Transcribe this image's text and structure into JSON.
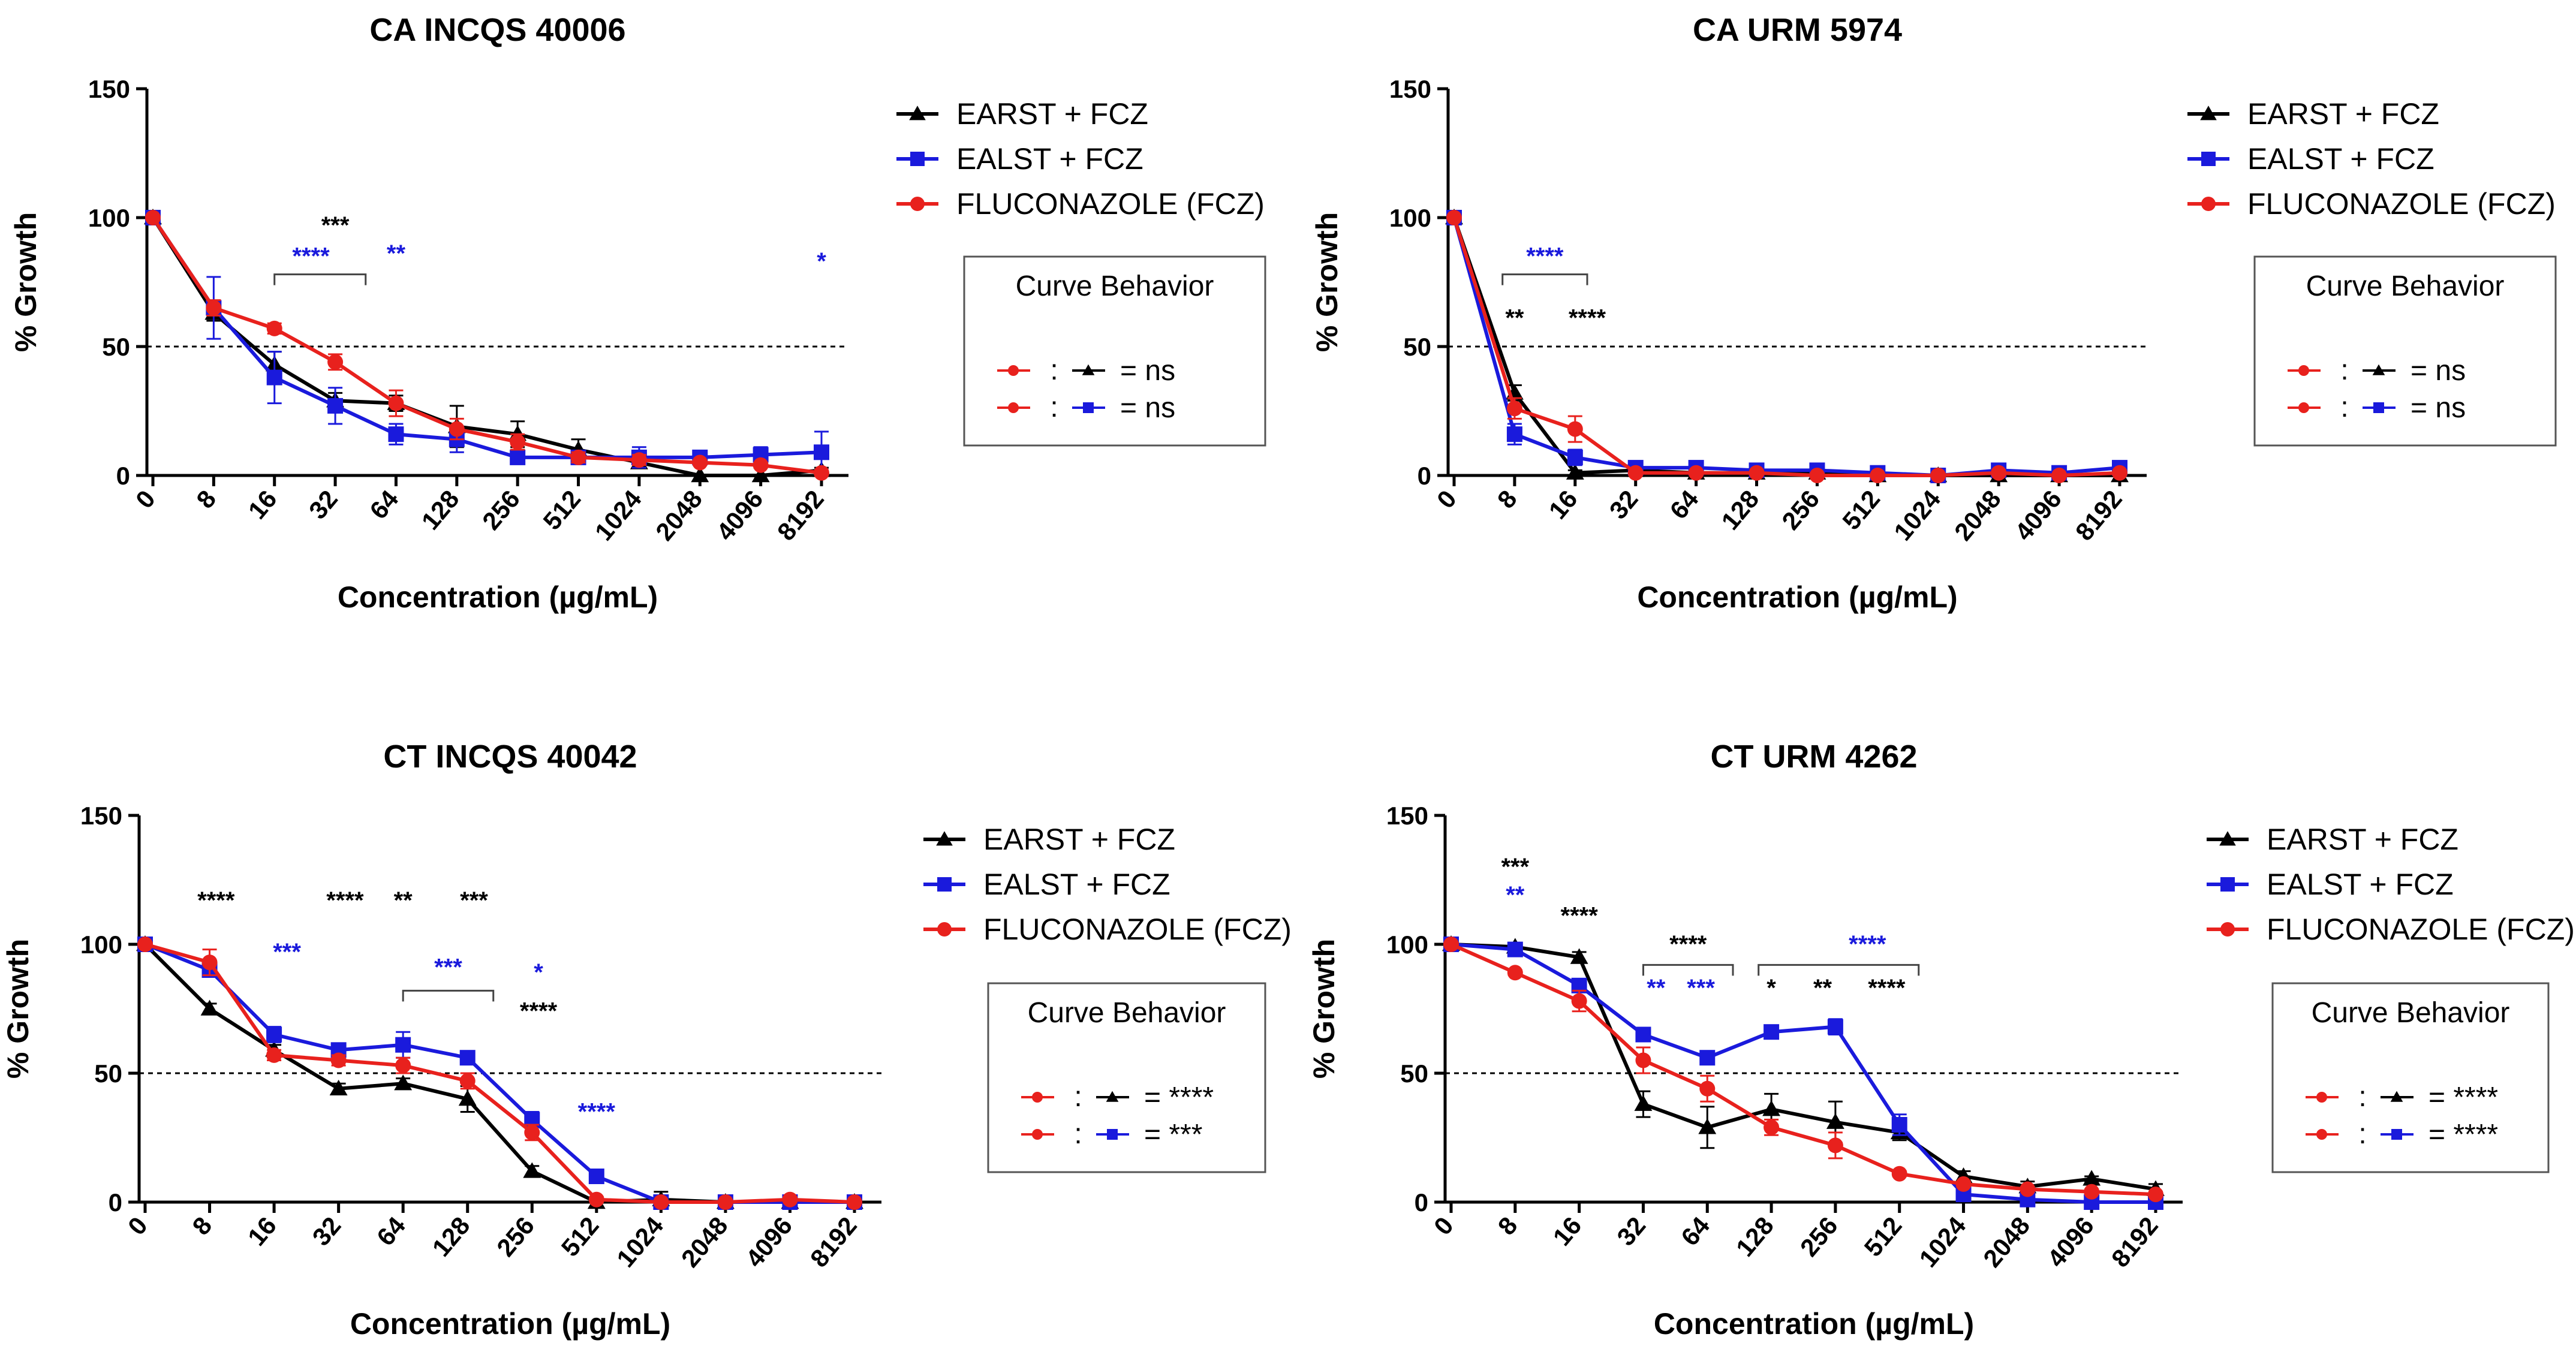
{
  "chart_data": [
    {
      "type": "line",
      "title": "CA INCQS 40006",
      "xlabel": "Concentration (µg/mL)",
      "ylabel": "% Growth",
      "categories": [
        "0",
        "8",
        "16",
        "32",
        "64",
        "128",
        "256",
        "512",
        "1024",
        "2048",
        "4096",
        "8192"
      ],
      "ylim": [
        0,
        150
      ],
      "yticks": [
        "0",
        "50",
        "100",
        "150"
      ],
      "reference_line": 50,
      "series": [
        {
          "name": "EARST + FCZ",
          "color": "#000000",
          "marker": "triangle",
          "values": [
            100,
            63,
            43,
            29,
            28,
            19,
            16,
            10,
            5,
            0,
            0,
            2
          ],
          "errors": [
            0,
            3,
            5,
            3,
            3,
            8,
            5,
            4,
            2,
            0,
            0,
            1
          ]
        },
        {
          "name": "EALST + FCZ",
          "color": "#1a1adc",
          "marker": "square",
          "values": [
            100,
            65,
            38,
            27,
            16,
            14,
            7,
            7,
            7,
            7,
            8,
            9
          ],
          "errors": [
            0,
            12,
            10,
            7,
            4,
            5,
            2,
            2,
            4,
            2,
            3,
            8
          ]
        },
        {
          "name": "FLUCONAZOLE (FCZ)",
          "color": "#e8211d",
          "marker": "circle",
          "values": [
            100,
            65,
            57,
            44,
            28,
            18,
            13,
            7,
            6,
            5,
            4,
            1
          ],
          "errors": [
            0,
            3,
            2,
            3,
            5,
            4,
            3,
            2,
            2,
            1,
            1,
            1
          ]
        }
      ],
      "annotations": [
        {
          "text": "***",
          "color": "#000000",
          "at_category": 3,
          "y": 94
        },
        {
          "text": "****",
          "color": "#1a1adc",
          "at_category": 2.6,
          "y": 82
        },
        {
          "text": "**",
          "color": "#1a1adc",
          "at_category": 4,
          "y": 83
        },
        {
          "text": "*",
          "color": "#1a1adc",
          "at_category": 11,
          "y": 80
        }
      ],
      "brackets": [
        {
          "from": 2,
          "to": 3.5,
          "y": 78
        }
      ],
      "curve_behavior": {
        "title": "Curve Behavior",
        "rows": [
          "= ns",
          "= ns"
        ]
      }
    },
    {
      "type": "line",
      "title": "CA URM 5974",
      "xlabel": "Concentration (µg/mL)",
      "ylabel": "% Growth",
      "categories": [
        "0",
        "8",
        "16",
        "32",
        "64",
        "128",
        "256",
        "512",
        "1024",
        "2048",
        "4096",
        "8192"
      ],
      "ylim": [
        0,
        150
      ],
      "yticks": [
        "0",
        "50",
        "100",
        "150"
      ],
      "reference_line": 50,
      "series": [
        {
          "name": "EARST + FCZ",
          "color": "#000000",
          "marker": "triangle",
          "values": [
            100,
            32,
            1,
            2,
            1,
            1,
            1,
            0,
            0,
            0,
            0,
            0
          ],
          "errors": [
            0,
            3,
            1,
            1,
            1,
            1,
            1,
            0,
            0,
            0,
            0,
            0
          ]
        },
        {
          "name": "EALST + FCZ",
          "color": "#1a1adc",
          "marker": "square",
          "values": [
            100,
            16,
            7,
            3,
            3,
            2,
            2,
            1,
            0,
            2,
            1,
            3
          ],
          "errors": [
            0,
            4,
            3,
            1,
            1,
            1,
            1,
            1,
            0,
            1,
            1,
            1
          ]
        },
        {
          "name": "FLUCONAZOLE (FCZ)",
          "color": "#e8211d",
          "marker": "circle",
          "values": [
            100,
            26,
            18,
            1,
            1,
            1,
            0,
            0,
            0,
            1,
            0,
            1
          ],
          "errors": [
            0,
            4,
            5,
            1,
            1,
            1,
            0,
            0,
            0,
            1,
            0,
            1
          ]
        }
      ],
      "annotations": [
        {
          "text": "****",
          "color": "#1a1adc",
          "at_category": 1.5,
          "y": 82
        },
        {
          "text": "**",
          "color": "#000000",
          "at_category": 1,
          "y": 58
        },
        {
          "text": "****",
          "color": "#000000",
          "at_category": 2.2,
          "y": 58
        }
      ],
      "brackets": [
        {
          "from": 0.8,
          "to": 2.2,
          "y": 78
        }
      ],
      "curve_behavior": {
        "title": "Curve Behavior",
        "rows": [
          "= ns",
          "= ns"
        ]
      }
    },
    {
      "type": "line",
      "title": "CT INCQS 40042",
      "xlabel": "Concentration (µg/mL)",
      "ylabel": "% Growth",
      "categories": [
        "0",
        "8",
        "16",
        "32",
        "64",
        "128",
        "256",
        "512",
        "1024",
        "2048",
        "4096",
        "8192"
      ],
      "ylim": [
        0,
        150
      ],
      "yticks": [
        "0",
        "50",
        "100",
        "150"
      ],
      "reference_line": 50,
      "series": [
        {
          "name": "EARST + FCZ",
          "color": "#000000",
          "marker": "triangle",
          "values": [
            100,
            75,
            59,
            44,
            46,
            40,
            12,
            0,
            1,
            0,
            0,
            0
          ],
          "errors": [
            0,
            2,
            2,
            2,
            2,
            5,
            2,
            0,
            3,
            0,
            0,
            0
          ]
        },
        {
          "name": "EALST + FCZ",
          "color": "#1a1adc",
          "marker": "square",
          "values": [
            100,
            90,
            65,
            59,
            61,
            56,
            32,
            10,
            0,
            0,
            0,
            0
          ],
          "errors": [
            0,
            2,
            3,
            2,
            5,
            2,
            3,
            1,
            0,
            0,
            0,
            0
          ]
        },
        {
          "name": "FLUCONAZOLE (FCZ)",
          "color": "#e8211d",
          "marker": "circle",
          "values": [
            100,
            93,
            57,
            55,
            53,
            47,
            27,
            1,
            0,
            0,
            1,
            0
          ],
          "errors": [
            0,
            5,
            2,
            2,
            3,
            3,
            3,
            1,
            0,
            0,
            1,
            0
          ]
        }
      ],
      "annotations": [
        {
          "text": "****",
          "color": "#000000",
          "at_category": 1.1,
          "y": 114
        },
        {
          "text": "****",
          "color": "#000000",
          "at_category": 3.1,
          "y": 114
        },
        {
          "text": "**",
          "color": "#000000",
          "at_category": 4,
          "y": 114
        },
        {
          "text": "***",
          "color": "#000000",
          "at_category": 5.1,
          "y": 114
        },
        {
          "text": "***",
          "color": "#1a1adc",
          "at_category": 2.2,
          "y": 94
        },
        {
          "text": "***",
          "color": "#1a1adc",
          "at_category": 4.7,
          "y": 88
        },
        {
          "text": "*",
          "color": "#1a1adc",
          "at_category": 6.1,
          "y": 86
        },
        {
          "text": "****",
          "color": "#000000",
          "at_category": 6.1,
          "y": 71
        },
        {
          "text": "****",
          "color": "#1a1adc",
          "at_category": 7,
          "y": 32
        }
      ],
      "brackets": [
        {
          "from": 4,
          "to": 5.4,
          "y": 82
        }
      ],
      "curve_behavior": {
        "title": "Curve Behavior",
        "rows": [
          "= ****",
          "= ***"
        ]
      }
    },
    {
      "type": "line",
      "title": "CT URM 4262",
      "xlabel": "Concentration (µg/mL)",
      "ylabel": "% Growth",
      "categories": [
        "0",
        "8",
        "16",
        "32",
        "64",
        "128",
        "256",
        "512",
        "1024",
        "2048",
        "4096",
        "8192"
      ],
      "ylim": [
        0,
        150
      ],
      "yticks": [
        "0",
        "50",
        "100",
        "150"
      ],
      "reference_line": 50,
      "series": [
        {
          "name": "EARST + FCZ",
          "color": "#000000",
          "marker": "triangle",
          "values": [
            100,
            99,
            95,
            38,
            29,
            36,
            31,
            27,
            10,
            6,
            9,
            5
          ],
          "errors": [
            0,
            1,
            2,
            5,
            8,
            6,
            8,
            3,
            2,
            2,
            1,
            2
          ]
        },
        {
          "name": "EALST + FCZ",
          "color": "#1a1adc",
          "marker": "square",
          "values": [
            100,
            98,
            84,
            65,
            56,
            66,
            68,
            30,
            3,
            1,
            0,
            0
          ],
          "errors": [
            0,
            1,
            2,
            2,
            1,
            2,
            3,
            4,
            1,
            0,
            0,
            0
          ]
        },
        {
          "name": "FLUCONAZOLE (FCZ)",
          "color": "#e8211d",
          "marker": "circle",
          "values": [
            100,
            89,
            78,
            55,
            44,
            29,
            22,
            11,
            7,
            5,
            4,
            3
          ],
          "errors": [
            0,
            1,
            4,
            5,
            5,
            3,
            5,
            1,
            1,
            1,
            1,
            1
          ]
        }
      ],
      "annotations": [
        {
          "text": "***",
          "color": "#000000",
          "at_category": 1,
          "y": 127
        },
        {
          "text": "**",
          "color": "#1a1adc",
          "at_category": 1,
          "y": 116
        },
        {
          "text": "****",
          "color": "#000000",
          "at_category": 2,
          "y": 108
        },
        {
          "text": "****",
          "color": "#000000",
          "at_category": 3.7,
          "y": 97
        },
        {
          "text": "**",
          "color": "#1a1adc",
          "at_category": 3.2,
          "y": 80
        },
        {
          "text": "***",
          "color": "#1a1adc",
          "at_category": 3.9,
          "y": 80
        },
        {
          "text": "****",
          "color": "#1a1adc",
          "at_category": 6.5,
          "y": 97
        },
        {
          "text": "*",
          "color": "#000000",
          "at_category": 5,
          "y": 80
        },
        {
          "text": "**",
          "color": "#000000",
          "at_category": 5.8,
          "y": 80
        },
        {
          "text": "****",
          "color": "#000000",
          "at_category": 6.8,
          "y": 80
        }
      ],
      "brackets": [
        {
          "from": 3,
          "to": 4.4,
          "y": 92
        },
        {
          "from": 4.8,
          "to": 7.3,
          "y": 92
        }
      ],
      "curve_behavior": {
        "title": "Curve Behavior",
        "rows": [
          "= ****",
          "= ****"
        ]
      }
    }
  ],
  "colors": {
    "black": "#000000",
    "blue": "#1a1adc",
    "red": "#e8211d"
  }
}
